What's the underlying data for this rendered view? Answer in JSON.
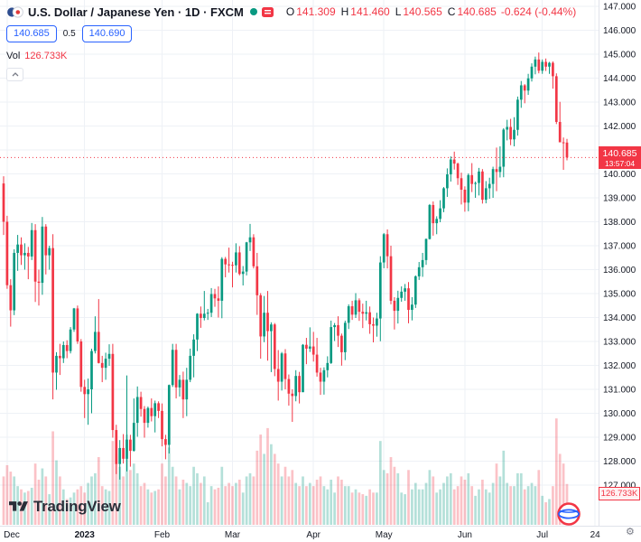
{
  "header": {
    "symbol_title": "U.S. Dollar / Japanese Yen · 1D · FXCM",
    "ohlc": {
      "o_label": "O",
      "o": "141.309",
      "h_label": "H",
      "h": "141.460",
      "l_label": "L",
      "l": "140.565",
      "c_label": "C",
      "c": "140.685",
      "change": "-0.624 (-0.44%)"
    },
    "bid": "140.685",
    "spread": "0.5",
    "ask": "140.690",
    "vol_label": "Vol",
    "vol_value": "126.733K"
  },
  "price_label": {
    "value": "140.685",
    "countdown": "13:57:04"
  },
  "vol_axis_label": "126.733K",
  "logo_text": "TradingView",
  "icons": {
    "gear": "⚙"
  },
  "colors": {
    "accent_blue": "#2962ff",
    "up": "#089981",
    "down": "#f23645",
    "grid": "#eef1f6",
    "axis_border": "#e0e3eb"
  },
  "chart_data": {
    "type": "candlestick",
    "title": "U.S. Dollar / Japanese Yen",
    "interval": "1D",
    "exchange": "FXCM",
    "last": {
      "open": 141.309,
      "high": 141.46,
      "low": 140.565,
      "close": 140.685,
      "change": -0.624,
      "change_pct": -0.44,
      "volume_k": 126.733
    },
    "price_axis": {
      "min": 127,
      "max": 147,
      "step": 1,
      "decimals": 3
    },
    "ylim": [
      125.3,
      147.3
    ],
    "time_ticks": [
      {
        "label": "Dec",
        "index": 1,
        "emphasis": false
      },
      {
        "label": "2023",
        "index": 23,
        "emphasis": true
      },
      {
        "label": "Feb",
        "index": 45,
        "emphasis": false
      },
      {
        "label": "Mar",
        "index": 65,
        "emphasis": false
      },
      {
        "label": "Apr",
        "index": 88,
        "emphasis": false
      },
      {
        "label": "May",
        "index": 108,
        "emphasis": false
      },
      {
        "label": "Jun",
        "index": 131,
        "emphasis": false
      },
      {
        "label": "Jul",
        "index": 153,
        "emphasis": false
      },
      {
        "label": "24",
        "index": 168,
        "emphasis": false
      }
    ],
    "colors": {
      "up": "#089981",
      "down": "#f23645",
      "up_volume": "rgba(8,153,129,0.3)",
      "down_volume": "rgba(242,54,69,0.3)"
    },
    "bars": [
      [
        139.6,
        139.9,
        137.45,
        138.0,
        150
      ],
      [
        138.0,
        138.25,
        135.2,
        135.35,
        185
      ],
      [
        135.35,
        135.6,
        133.62,
        134.3,
        165
      ],
      [
        134.3,
        136.85,
        134.1,
        136.7,
        150
      ],
      [
        136.7,
        137.45,
        135.95,
        137.05,
        120
      ],
      [
        137.05,
        137.35,
        136.2,
        136.6,
        110
      ],
      [
        136.6,
        137.1,
        136.0,
        136.7,
        100
      ],
      [
        136.7,
        136.95,
        135.6,
        136.55,
        105
      ],
      [
        136.55,
        137.95,
        136.4,
        137.65,
        115
      ],
      [
        137.65,
        137.9,
        134.65,
        135.5,
        190
      ],
      [
        135.5,
        136.0,
        134.5,
        135.45,
        140
      ],
      [
        135.45,
        138.2,
        134.95,
        137.8,
        175
      ],
      [
        137.8,
        137.9,
        135.8,
        136.6,
        150
      ],
      [
        136.6,
        137.0,
        136.0,
        136.9,
        95
      ],
      [
        136.9,
        137.48,
        130.58,
        131.7,
        290
      ],
      [
        131.7,
        132.55,
        130.98,
        132.4,
        200
      ],
      [
        132.4,
        132.9,
        131.6,
        132.3,
        150
      ],
      [
        132.3,
        133.0,
        132.1,
        132.85,
        110
      ],
      [
        132.85,
        133.05,
        132.3,
        132.6,
        80
      ],
      [
        132.6,
        133.6,
        132.5,
        133.5,
        85
      ],
      [
        133.5,
        134.4,
        133.4,
        134.38,
        100
      ],
      [
        134.38,
        134.5,
        132.9,
        133.0,
        110
      ],
      [
        133.0,
        133.1,
        130.9,
        131.1,
        120
      ],
      [
        131.1,
        131.4,
        129.8,
        130.8,
        100
      ],
      [
        130.8,
        131.45,
        129.52,
        131.0,
        130
      ],
      [
        131.0,
        132.7,
        130.0,
        132.6,
        150
      ],
      [
        132.6,
        134.05,
        132.5,
        133.4,
        160
      ],
      [
        133.4,
        134.77,
        132.08,
        132.1,
        210
      ],
      [
        132.1,
        132.4,
        131.3,
        131.9,
        120
      ],
      [
        131.9,
        132.53,
        131.4,
        132.28,
        110
      ],
      [
        132.28,
        132.88,
        131.98,
        132.48,
        105
      ],
      [
        132.48,
        132.9,
        128.98,
        129.3,
        260
      ],
      [
        129.3,
        129.52,
        127.46,
        127.88,
        220
      ],
      [
        127.88,
        128.88,
        127.23,
        128.55,
        180
      ],
      [
        128.55,
        129.13,
        127.9,
        128.1,
        150
      ],
      [
        128.1,
        131.58,
        127.57,
        128.9,
        280
      ],
      [
        128.9,
        129.1,
        127.77,
        128.43,
        170
      ],
      [
        128.43,
        130.62,
        128.4,
        129.6,
        190
      ],
      [
        129.6,
        131.12,
        129.02,
        130.68,
        160
      ],
      [
        130.68,
        130.9,
        129.86,
        130.18,
        120
      ],
      [
        130.18,
        130.3,
        128.98,
        129.6,
        130
      ],
      [
        129.6,
        130.28,
        129.4,
        130.22,
        110
      ],
      [
        130.22,
        130.62,
        129.66,
        129.88,
        100
      ],
      [
        129.88,
        130.53,
        129.2,
        130.42,
        105
      ],
      [
        130.42,
        130.5,
        129.8,
        130.1,
        110
      ],
      [
        130.1,
        130.41,
        128.62,
        128.92,
        190
      ],
      [
        128.92,
        129.1,
        128.08,
        128.68,
        150
      ],
      [
        128.68,
        131.2,
        128.32,
        131.18,
        240
      ],
      [
        131.18,
        132.9,
        131.1,
        132.65,
        180
      ],
      [
        132.65,
        132.9,
        130.62,
        131.08,
        150
      ],
      [
        131.08,
        131.6,
        130.7,
        131.4,
        110
      ],
      [
        131.4,
        131.74,
        129.8,
        130.58,
        140
      ],
      [
        130.58,
        131.9,
        129.88,
        131.4,
        130
      ],
      [
        131.4,
        132.7,
        131.3,
        132.4,
        120
      ],
      [
        132.4,
        133.3,
        131.5,
        133.08,
        180
      ],
      [
        133.08,
        134.18,
        132.6,
        134.16,
        160
      ],
      [
        134.16,
        134.46,
        133.57,
        133.98,
        130
      ],
      [
        133.98,
        135.11,
        133.88,
        134.16,
        150
      ],
      [
        134.16,
        134.36,
        133.9,
        134.2,
        70
      ],
      [
        134.2,
        135.23,
        134.02,
        134.98,
        120
      ],
      [
        134.98,
        135.2,
        134.45,
        134.8,
        110
      ],
      [
        134.8,
        135.3,
        134.0,
        134.7,
        115
      ],
      [
        134.7,
        136.52,
        133.97,
        136.45,
        180
      ],
      [
        136.45,
        136.53,
        135.68,
        136.22,
        120
      ],
      [
        136.22,
        136.92,
        135.88,
        136.2,
        130
      ],
      [
        136.2,
        136.33,
        135.26,
        136.18,
        120
      ],
      [
        136.18,
        137.1,
        135.88,
        136.72,
        130
      ],
      [
        136.72,
        136.98,
        135.76,
        135.82,
        140
      ],
      [
        135.82,
        136.15,
        135.34,
        135.92,
        100
      ],
      [
        135.92,
        137.16,
        135.76,
        137.14,
        150
      ],
      [
        137.14,
        137.91,
        136.78,
        137.35,
        160
      ],
      [
        137.35,
        137.48,
        136.05,
        136.14,
        150
      ],
      [
        136.14,
        136.7,
        134.11,
        134.93,
        230
      ],
      [
        134.93,
        135.02,
        132.28,
        133.21,
        280
      ],
      [
        133.21,
        134.9,
        132.97,
        134.2,
        220
      ],
      [
        134.2,
        135.11,
        132.2,
        133.43,
        300
      ],
      [
        133.43,
        133.8,
        131.72,
        133.71,
        250
      ],
      [
        133.71,
        133.77,
        131.55,
        131.85,
        220
      ],
      [
        131.85,
        132.64,
        130.53,
        131.32,
        190
      ],
      [
        131.32,
        132.56,
        130.95,
        132.5,
        150
      ],
      [
        132.5,
        132.68,
        131.0,
        131.43,
        180
      ],
      [
        131.43,
        131.62,
        130.32,
        130.82,
        150
      ],
      [
        130.82,
        131.0,
        129.64,
        130.72,
        170
      ],
      [
        130.72,
        131.8,
        130.5,
        131.56,
        130
      ],
      [
        131.56,
        131.73,
        130.41,
        130.88,
        120
      ],
      [
        130.88,
        132.89,
        130.88,
        132.86,
        150
      ],
      [
        132.86,
        133.15,
        132.05,
        132.7,
        120
      ],
      [
        132.7,
        133.59,
        132.56,
        132.79,
        130
      ],
      [
        132.79,
        133.4,
        132.16,
        132.45,
        120
      ],
      [
        132.45,
        133.15,
        131.53,
        131.7,
        140
      ],
      [
        131.7,
        131.9,
        130.77,
        131.32,
        150
      ],
      [
        131.32,
        131.92,
        130.78,
        131.8,
        120
      ],
      [
        131.8,
        132.38,
        131.5,
        132.1,
        110
      ],
      [
        132.1,
        133.87,
        132.06,
        133.6,
        140
      ],
      [
        133.6,
        133.77,
        133.02,
        133.68,
        100
      ],
      [
        133.68,
        134.05,
        132.77,
        133.24,
        150
      ],
      [
        133.24,
        133.33,
        131.99,
        132.55,
        140
      ],
      [
        132.55,
        133.87,
        132.22,
        133.78,
        120
      ],
      [
        133.78,
        134.55,
        133.52,
        134.47,
        120
      ],
      [
        134.47,
        134.7,
        133.9,
        134.12,
        100
      ],
      [
        134.12,
        135.02,
        133.98,
        134.72,
        110
      ],
      [
        134.72,
        134.8,
        133.86,
        134.24,
        100
      ],
      [
        134.24,
        134.58,
        133.56,
        134.16,
        95
      ],
      [
        134.16,
        134.7,
        133.88,
        134.22,
        90
      ],
      [
        134.22,
        134.46,
        133.32,
        133.72,
        110
      ],
      [
        133.72,
        134.0,
        132.96,
        133.66,
        100
      ],
      [
        133.66,
        134.2,
        133.2,
        133.96,
        100
      ],
      [
        133.96,
        136.56,
        133.01,
        136.3,
        260
      ],
      [
        136.3,
        137.53,
        136.06,
        137.48,
        170
      ],
      [
        137.48,
        137.68,
        136.05,
        136.56,
        160
      ],
      [
        136.56,
        137.0,
        134.55,
        134.7,
        210
      ],
      [
        134.7,
        134.85,
        133.5,
        134.28,
        180
      ],
      [
        134.28,
        135.12,
        133.75,
        134.82,
        160
      ],
      [
        134.82,
        135.3,
        134.66,
        135.08,
        100
      ],
      [
        135.08,
        135.4,
        134.7,
        135.22,
        95
      ],
      [
        135.22,
        135.48,
        133.76,
        134.32,
        170
      ],
      [
        134.32,
        134.85,
        133.88,
        134.54,
        110
      ],
      [
        134.54,
        135.76,
        134.4,
        135.72,
        130
      ],
      [
        135.72,
        136.32,
        135.57,
        136.1,
        110
      ],
      [
        136.1,
        136.7,
        135.7,
        136.4,
        110
      ],
      [
        136.4,
        137.3,
        136.2,
        137.28,
        130
      ],
      [
        137.28,
        138.74,
        137.26,
        138.7,
        170
      ],
      [
        138.7,
        138.85,
        137.42,
        137.94,
        150
      ],
      [
        137.94,
        138.23,
        137.48,
        138.12,
        100
      ],
      [
        138.12,
        138.9,
        137.98,
        138.56,
        110
      ],
      [
        138.56,
        139.45,
        138.4,
        139.4,
        130
      ],
      [
        139.4,
        140.23,
        139.04,
        139.98,
        150
      ],
      [
        139.98,
        140.73,
        139.68,
        140.6,
        160
      ],
      [
        140.6,
        140.93,
        140.18,
        140.43,
        110
      ],
      [
        140.43,
        140.47,
        139.54,
        139.82,
        120
      ],
      [
        139.82,
        140.05,
        138.72,
        139.34,
        150
      ],
      [
        139.34,
        139.48,
        138.42,
        138.8,
        140
      ],
      [
        138.8,
        140.02,
        138.44,
        139.95,
        160
      ],
      [
        139.95,
        140.45,
        139.24,
        139.58,
        120
      ],
      [
        139.58,
        139.68,
        139.0,
        139.62,
        90
      ],
      [
        139.62,
        140.25,
        139.1,
        140.1,
        110
      ],
      [
        140.1,
        140.2,
        138.76,
        138.92,
        140
      ],
      [
        138.92,
        139.7,
        138.77,
        139.4,
        110
      ],
      [
        139.4,
        139.84,
        138.96,
        139.58,
        100
      ],
      [
        139.58,
        140.3,
        139.0,
        140.2,
        130
      ],
      [
        140.2,
        141.1,
        139.28,
        140.08,
        190
      ],
      [
        140.08,
        141.15,
        139.85,
        140.3,
        150
      ],
      [
        140.3,
        141.91,
        139.86,
        141.85,
        230
      ],
      [
        141.85,
        142.26,
        141.4,
        141.96,
        130
      ],
      [
        141.96,
        142.3,
        141.2,
        141.44,
        120
      ],
      [
        141.44,
        142.37,
        141.15,
        141.84,
        120
      ],
      [
        141.84,
        143.23,
        141.6,
        143.1,
        160
      ],
      [
        143.1,
        143.88,
        142.76,
        143.7,
        160
      ],
      [
        143.7,
        143.75,
        142.95,
        143.48,
        110
      ],
      [
        143.48,
        144.18,
        143.3,
        143.99,
        120
      ],
      [
        143.99,
        144.62,
        143.86,
        144.48,
        130
      ],
      [
        144.48,
        144.9,
        144.16,
        144.78,
        120
      ],
      [
        144.78,
        145.07,
        144.2,
        144.31,
        170
      ],
      [
        144.31,
        144.78,
        144.18,
        144.68,
        90
      ],
      [
        144.68,
        144.82,
        144.3,
        144.48,
        70
      ],
      [
        144.48,
        144.68,
        144.18,
        144.64,
        80
      ],
      [
        144.64,
        144.7,
        143.56,
        144.08,
        120
      ],
      [
        144.08,
        144.2,
        142.08,
        142.17,
        330
      ],
      [
        142.17,
        143.01,
        141.32,
        141.32,
        220
      ],
      [
        141.32,
        141.52,
        140.17,
        141.31,
        190
      ],
      [
        141.309,
        141.46,
        140.565,
        140.685,
        126.733
      ]
    ]
  }
}
